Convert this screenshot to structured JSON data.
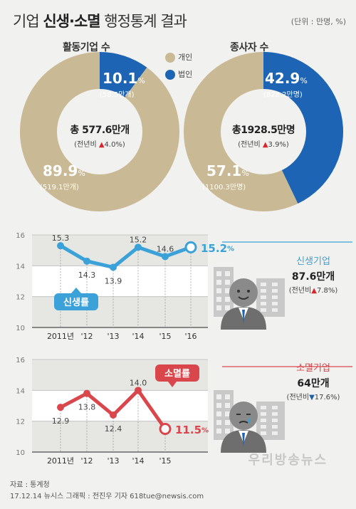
{
  "header": {
    "title_prefix": "기업 ",
    "title_bold": "신생·소멸",
    "title_suffix": " 행정통계 결과",
    "unit": "(단위 : 만명, %)"
  },
  "legend": {
    "individual": "개인",
    "corporate": "법인"
  },
  "colors": {
    "individual": "#c9b995",
    "corporate": "#1e64b4",
    "birth": "#3aa2d8",
    "death": "#d9474c",
    "center": "#f1f1ef"
  },
  "chart_data": [
    {
      "type": "pie",
      "title": "활동기업 수",
      "categories": [
        "개인",
        "법인"
      ],
      "values": [
        89.9,
        10.1
      ],
      "slice_labels": [
        {
          "pct": "89.9",
          "unit": "%",
          "sub": "(519.1만개)"
        },
        {
          "pct": "10.1",
          "unit": "%",
          "sub": "(58.5만개)"
        }
      ],
      "center": {
        "total": "총 577.6만개",
        "change_prefix": "(전년비 ",
        "change_arrow": "▲",
        "change_value": "4.0%)"
      }
    },
    {
      "type": "pie",
      "title": "종사자 수",
      "categories": [
        "개인",
        "법인"
      ],
      "values": [
        57.1,
        42.9
      ],
      "slice_labels": [
        {
          "pct": "57.1",
          "unit": "%",
          "sub": "(1100.3만명)"
        },
        {
          "pct": "42.9",
          "unit": "%",
          "sub": "(828.2만명)"
        }
      ],
      "center": {
        "total": "총1928.5만명",
        "change_prefix": "(전년비 ",
        "change_arrow": "▲",
        "change_value": "3.9%)"
      }
    },
    {
      "type": "line",
      "label": "신생률",
      "categories": [
        "2011년",
        "'12",
        "'13",
        "'14",
        "'15",
        "'16"
      ],
      "values": [
        15.3,
        14.3,
        13.9,
        15.2,
        14.6,
        15.2
      ],
      "value_labels": [
        "15.3",
        "14.3",
        "13.9",
        "15.2",
        "14.6",
        "15.2"
      ],
      "last_label_unit": "%",
      "ylim": [
        10,
        16
      ],
      "yticks": [
        "16",
        "14",
        "12",
        "10"
      ],
      "side": {
        "title": "신생기업",
        "value": "87.6만개",
        "change_prefix": "(전년비",
        "change_arrow": "▲",
        "change_value": "7.8%)"
      }
    },
    {
      "type": "line",
      "label": "소멸률",
      "categories": [
        "2011년",
        "'12",
        "'13",
        "'14",
        "'15"
      ],
      "values": [
        12.9,
        13.8,
        12.4,
        14.0,
        11.5
      ],
      "value_labels": [
        "12.9",
        "13.8",
        "12.4",
        "14.0",
        "11.5"
      ],
      "last_label_unit": "%",
      "ylim": [
        10,
        16
      ],
      "yticks": [
        "16",
        "14",
        "12",
        "10"
      ],
      "side": {
        "title": "소멸기업",
        "value": "64만개",
        "change_prefix": "(전년비",
        "change_arrow": "▼",
        "change_value": "17.6%)"
      }
    }
  ],
  "footer": {
    "source": "자료 : 통계청",
    "credit": "17.12.14  뉴시스 그래픽 : 전진우 기자  618tue@newsis.com"
  },
  "watermark": "우리방송뉴스"
}
